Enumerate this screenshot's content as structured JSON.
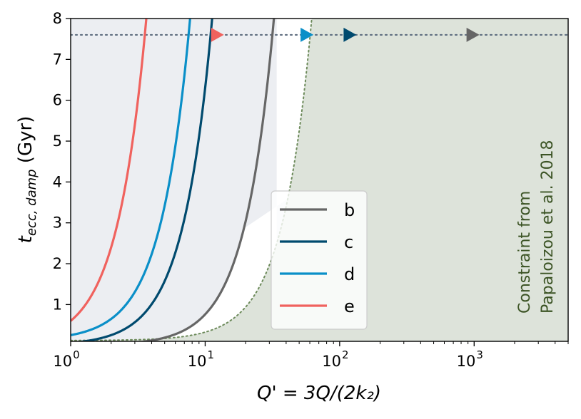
{
  "chart_data": {
    "type": "line",
    "xscale": "log",
    "xlim": [
      1,
      5000
    ],
    "ylim": [
      0.1,
      8
    ],
    "xlabel": "Q' = 3Q/(2k₂)",
    "ylabel_main": "t",
    "ylabel_sub": "ecc, damp",
    "ylabel_unit": " (Gyr)",
    "xticks": [
      {
        "value": 1,
        "base": "10",
        "exp": "0"
      },
      {
        "value": 10,
        "base": "10",
        "exp": "1"
      },
      {
        "value": 100,
        "base": "10",
        "exp": "2"
      },
      {
        "value": 1000,
        "base": "10",
        "exp": "3"
      }
    ],
    "yticks": [
      {
        "value": 1,
        "label": "1"
      },
      {
        "value": 2,
        "label": "2"
      },
      {
        "value": 3,
        "label": "3"
      },
      {
        "value": 4,
        "label": "4"
      },
      {
        "value": 5,
        "label": "5"
      },
      {
        "value": 6,
        "label": "6"
      },
      {
        "value": 7,
        "label": "7"
      },
      {
        "value": 8,
        "label": "8"
      }
    ],
    "system_age_line": {
      "y": 7.6,
      "color": "#5f6e80",
      "style": "dotted"
    },
    "series": [
      {
        "name": "b",
        "color": "#666666",
        "slope": 0.0076,
        "offset": 0.0,
        "marker_x": 968,
        "fill": "#eceef2"
      },
      {
        "name": "c",
        "color": "#004a6e",
        "slope": 0.063,
        "offset": 0.0,
        "marker_x": 118,
        "fill": "#eef0f4"
      },
      {
        "name": "d",
        "color": "#0a8fc8",
        "slope": 0.132,
        "offset": 0.12,
        "marker_x": 56.5,
        "fill": "#f3f4f7"
      },
      {
        "name": "e",
        "color": "#f0625e",
        "slope": 0.6,
        "offset": 0.0,
        "marker_x": 12.2,
        "fill": "#fdf7f7"
      }
    ],
    "constraint": {
      "slope": 0.00205,
      "offset": 0.12,
      "color": "#6c8a5a",
      "fill": "#dde3da",
      "text_color": "#3c5425",
      "line1": "Constraint from",
      "line2": "Papaloizou et al. 2018"
    },
    "legend": {
      "location": "center-bottom",
      "entries": [
        "b",
        "c",
        "d",
        "e"
      ]
    }
  }
}
